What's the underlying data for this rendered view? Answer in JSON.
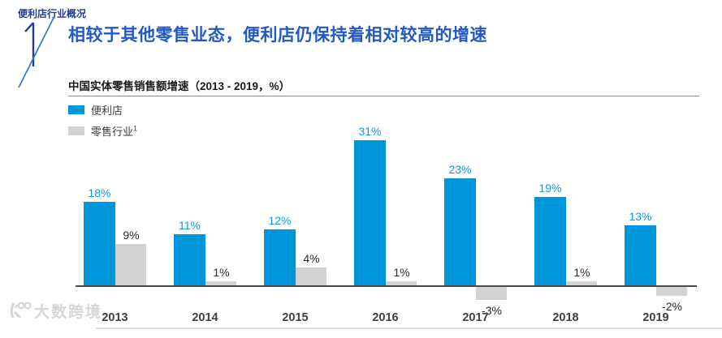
{
  "page": {
    "eyebrow": "便利店行业概况",
    "section_number": "1",
    "title": "相较于其他零售业态，便利店仍保持着相对较高的增速",
    "watermark": "大数跨境"
  },
  "chart_data": {
    "type": "bar",
    "title": "中国实体零售销售额增速（2013 - 2019，%）",
    "categories": [
      "2013",
      "2014",
      "2015",
      "2016",
      "2017",
      "2018",
      "2019"
    ],
    "series": [
      {
        "name": "便利店",
        "sup": "",
        "color": "#0096DC",
        "label_color": "#0F98DC",
        "values": [
          18,
          11,
          12,
          31,
          23,
          19,
          13
        ]
      },
      {
        "name": "零售行业",
        "sup": "1",
        "color": "#D2D2D2",
        "label_color": "#2b2b2b",
        "values": [
          9,
          1,
          4,
          1,
          -3,
          1,
          -2
        ]
      }
    ],
    "value_suffix": "%",
    "ylim": [
      -5,
      33
    ],
    "grid": false,
    "legend_position": "top-left",
    "accent_colors": {
      "bar_blue": "#0096DC",
      "bar_gray": "#D2D2D2",
      "title_blue": "#2459C4",
      "eyebrow_navy": "#283A8F"
    }
  }
}
